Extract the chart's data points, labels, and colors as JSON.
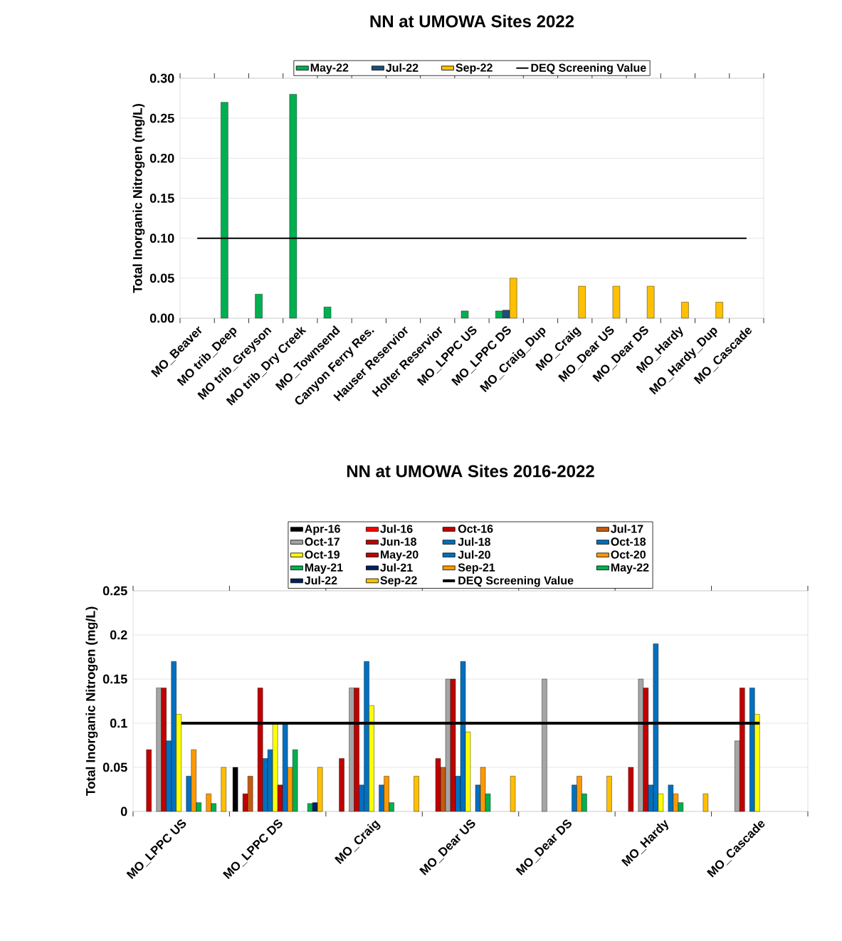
{
  "chart_data": [
    {
      "type": "bar",
      "title": "NN at UMOWA Sites 2022",
      "ylabel": "Total Inorganic Nitrogen (mg/L)",
      "categories": [
        "MO_Beaver",
        "MO trib_Deep",
        "MO trib_Greyson",
        "MO trib_Dry Creek",
        "MO_Townsend",
        "Canyon Ferry  Res.",
        "Hauser Reservior",
        "Holter Reservior",
        "MO_LPPC US",
        "MO_LPPC DS",
        "MO_Craig_Dup",
        "MO_Craig",
        "MO_Dear US",
        "MO_Dear DS",
        "MO_Hardy",
        "MO_Hardy_Dup",
        "MO_Cascade"
      ],
      "series": [
        {
          "name": "May-22",
          "color": "#00b050",
          "values": [
            null,
            0.27,
            0.03,
            0.28,
            0.014,
            null,
            null,
            null,
            0.009,
            0.009,
            null,
            null,
            null,
            null,
            null,
            null,
            null
          ]
        },
        {
          "name": "Jul-22",
          "color": "#1f4e79",
          "values": [
            null,
            null,
            null,
            null,
            null,
            null,
            null,
            null,
            null,
            0.01,
            null,
            null,
            null,
            null,
            null,
            null,
            null
          ]
        },
        {
          "name": "Sep-22",
          "color": "#ffc000",
          "values": [
            null,
            null,
            null,
            null,
            null,
            null,
            null,
            null,
            null,
            0.05,
            null,
            0.04,
            0.04,
            0.04,
            0.02,
            0.02,
            null
          ]
        }
      ],
      "ylim": [
        0,
        0.3
      ],
      "yticks": [
        {
          "value": 0,
          "label": "0.00"
        },
        {
          "value": 0.05,
          "label": "0.05"
        },
        {
          "value": 0.1,
          "label": "0.10"
        },
        {
          "value": 0.15,
          "label": "0.15"
        },
        {
          "value": 0.2,
          "label": "0.20"
        },
        {
          "value": 0.25,
          "label": "0.25"
        },
        {
          "value": 0.3,
          "label": "0.30"
        }
      ],
      "grid": "y",
      "legend": "top",
      "ref_lines": [
        {
          "axis": "y",
          "value": 0.1,
          "label": "DEQ Screening Value",
          "color": "#000000"
        }
      ]
    },
    {
      "type": "bar",
      "title": "NN at UMOWA Sites 2016-2022",
      "ylabel": "Total Inorganic Nitrogen (mg/L)",
      "categories": [
        "MO_LPPC US",
        "MO_LPPC DS",
        "MO_Craig",
        "MO_Dear US",
        "MO_Dear DS",
        "MO_Hardy",
        "MO_Cascade"
      ],
      "series": [
        {
          "name": "Apr-16",
          "color": "#000000",
          "values": [
            null,
            0.05,
            null,
            null,
            null,
            null,
            null
          ]
        },
        {
          "name": "Jul-16",
          "color": "#ff0000",
          "values": [
            null,
            null,
            null,
            null,
            null,
            null,
            null
          ]
        },
        {
          "name": "Oct-16",
          "color": "#c00000",
          "values": [
            0.07,
            0.02,
            0.06,
            0.06,
            null,
            0.05,
            null
          ]
        },
        {
          "name": "Jul-17",
          "color": "#c55a11",
          "values": [
            null,
            0.04,
            null,
            0.05,
            null,
            null,
            null
          ]
        },
        {
          "name": "Oct-17",
          "color": "#a5a5a5",
          "values": [
            0.14,
            null,
            0.14,
            0.15,
            0.15,
            0.15,
            0.08
          ]
        },
        {
          "name": "Jun-18",
          "color": "#c00000",
          "values": [
            0.14,
            0.14,
            0.14,
            0.15,
            null,
            0.14,
            0.14
          ]
        },
        {
          "name": "Jul-18",
          "color": "#0070c0",
          "values": [
            0.08,
            0.06,
            0.03,
            0.04,
            null,
            0.03,
            null
          ]
        },
        {
          "name": "Oct-18",
          "color": "#0070c0",
          "values": [
            0.17,
            0.07,
            0.17,
            0.17,
            null,
            0.19,
            0.14
          ]
        },
        {
          "name": "Oct-19",
          "color": "#ffff00",
          "values": [
            0.11,
            0.1,
            0.12,
            0.09,
            null,
            0.02,
            0.11
          ]
        },
        {
          "name": "May-20",
          "color": "#c00000",
          "values": [
            null,
            0.03,
            null,
            null,
            null,
            null,
            null
          ]
        },
        {
          "name": "Jul-20",
          "color": "#0070c0",
          "values": [
            0.04,
            0.1,
            0.03,
            0.03,
            0.03,
            0.03,
            null
          ]
        },
        {
          "name": "Oct-20",
          "color": "#ff9900",
          "values": [
            0.07,
            0.05,
            0.04,
            0.05,
            0.04,
            0.02,
            null
          ]
        },
        {
          "name": "May-21",
          "color": "#00b050",
          "values": [
            0.01,
            0.07,
            0.01,
            0.02,
            0.02,
            0.01,
            null
          ]
        },
        {
          "name": "Jul-21",
          "color": "#002060",
          "values": [
            null,
            null,
            null,
            null,
            null,
            null,
            null
          ]
        },
        {
          "name": "Sep-21",
          "color": "#ff9900",
          "values": [
            0.02,
            null,
            null,
            null,
            null,
            null,
            null
          ]
        },
        {
          "name": "May-22",
          "color": "#00b050",
          "values": [
            0.009,
            0.009,
            null,
            null,
            null,
            null,
            null
          ]
        },
        {
          "name": "Jul-22",
          "color": "#002060",
          "values": [
            null,
            0.01,
            null,
            null,
            null,
            null,
            null
          ]
        },
        {
          "name": "Sep-22",
          "color": "#ffc000",
          "values": [
            0.05,
            0.05,
            0.04,
            0.04,
            0.04,
            0.02,
            null
          ]
        }
      ],
      "ylim": [
        0,
        0.25
      ],
      "yticks": [
        0,
        0.05,
        0.1,
        0.15,
        0.2,
        0.25
      ],
      "grid": "y",
      "legend": "top",
      "ref_lines": [
        {
          "axis": "y",
          "value": 0.1,
          "label": "DEQ Screening Value",
          "color": "#000000"
        }
      ]
    }
  ]
}
